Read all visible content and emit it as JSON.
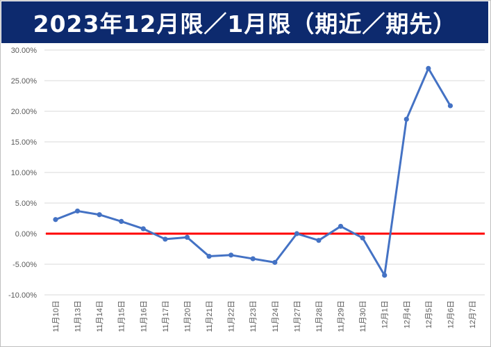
{
  "chart_data": {
    "type": "line",
    "title": "2023年12月限／1月限（期近／期先）",
    "categories": [
      "11月10日",
      "11月13日",
      "11月14日",
      "11月15日",
      "11月16日",
      "11月17日",
      "11月20日",
      "11月21日",
      "11月22日",
      "11月23日",
      "11月24日",
      "11月27日",
      "11月28日",
      "11月29日",
      "11月30日",
      "12月1日",
      "12月4日",
      "12月5日",
      "12月6日",
      "12月7日"
    ],
    "series": [
      {
        "values": [
          2.3,
          3.7,
          3.1,
          2.0,
          0.8,
          -0.9,
          -0.6,
          -3.7,
          -3.5,
          -4.1,
          -4.7,
          0.0,
          -1.1,
          1.2,
          -0.7,
          -6.8,
          18.7,
          27.0,
          20.9,
          null
        ],
        "color": "#4472c4"
      }
    ],
    "yticks": [
      "30.00%",
      "25.00%",
      "20.00%",
      "15.00%",
      "10.00%",
      "5.00%",
      "0.00%",
      "-5.00%",
      "-10.00%"
    ],
    "ylim": [
      -10,
      30
    ],
    "reference_line": {
      "value": 0,
      "color": "#ff0000"
    },
    "grid": true,
    "legend": "none",
    "colors": {
      "banner": "#0d2a6e",
      "banner_text": "#ffffff",
      "line": "#4472c4",
      "zero_line": "#ff0000",
      "grid": "#d9d9d9"
    }
  }
}
